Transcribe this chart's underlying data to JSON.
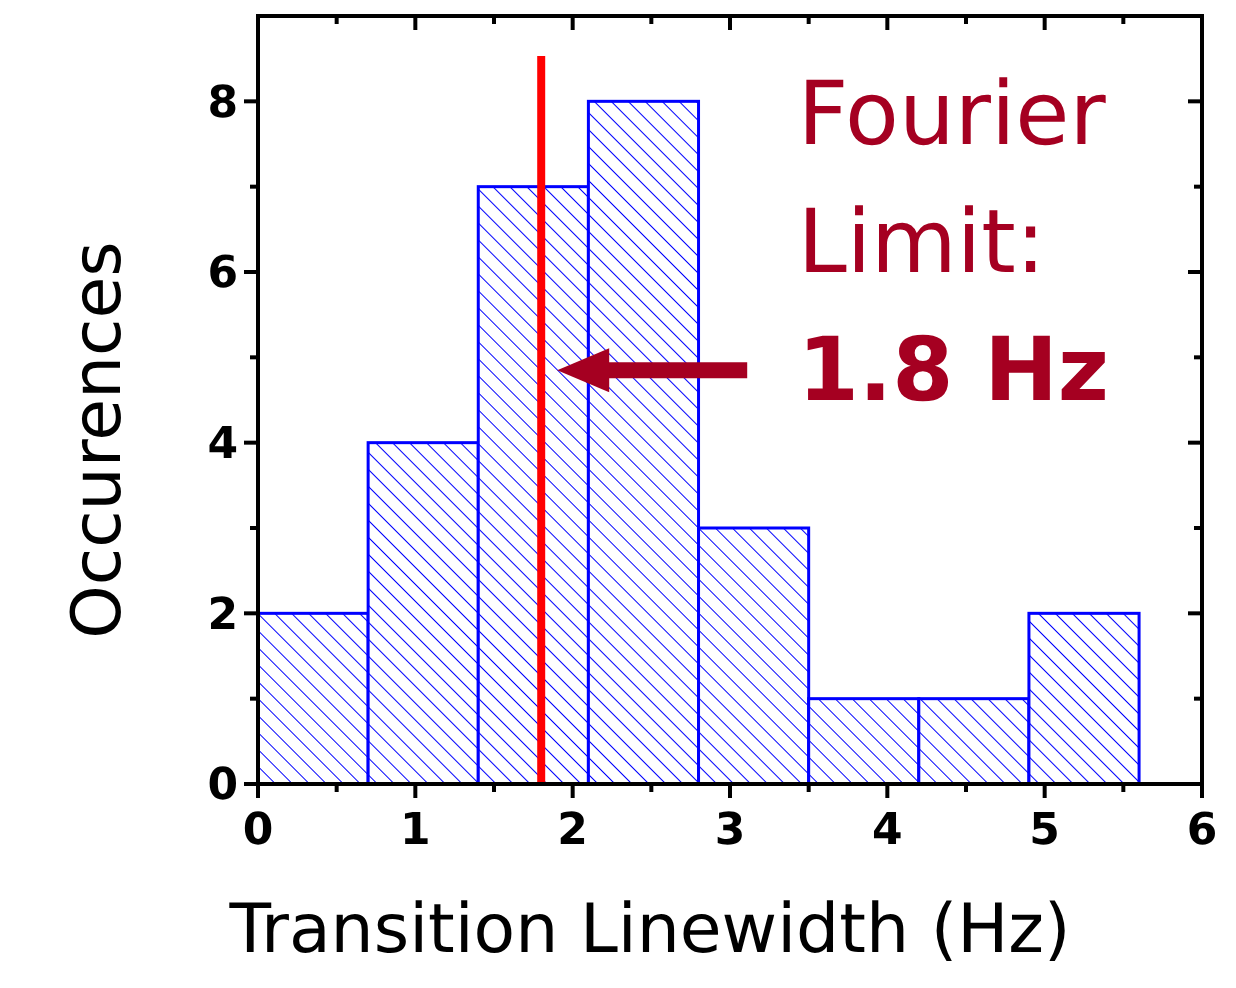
{
  "chart_data": {
    "type": "histogram",
    "bins": [
      0,
      0.7,
      1.4,
      2.1,
      2.8,
      3.5,
      4.2,
      4.9,
      5.6
    ],
    "values": [
      2,
      4,
      7,
      8,
      3,
      1,
      1,
      2
    ],
    "color": "#0000ff",
    "xlabel": "Transition Linewidth (Hz)",
    "ylabel": "Occurences",
    "xlim": [
      0,
      6
    ],
    "xticks": [
      0,
      1,
      2,
      3,
      4,
      5,
      6
    ],
    "ylim": [
      0,
      9
    ],
    "yticks": [
      0,
      2,
      4,
      6,
      8
    ],
    "ref_lines": [
      {
        "axis": "x",
        "value": 1.8,
        "color": "#ff0000"
      }
    ],
    "annotations": [
      {
        "text": "Fourier\nLimit:\n1.8 Hz",
        "x": 1.8,
        "y": 4.85
      }
    ],
    "grid": false
  }
}
